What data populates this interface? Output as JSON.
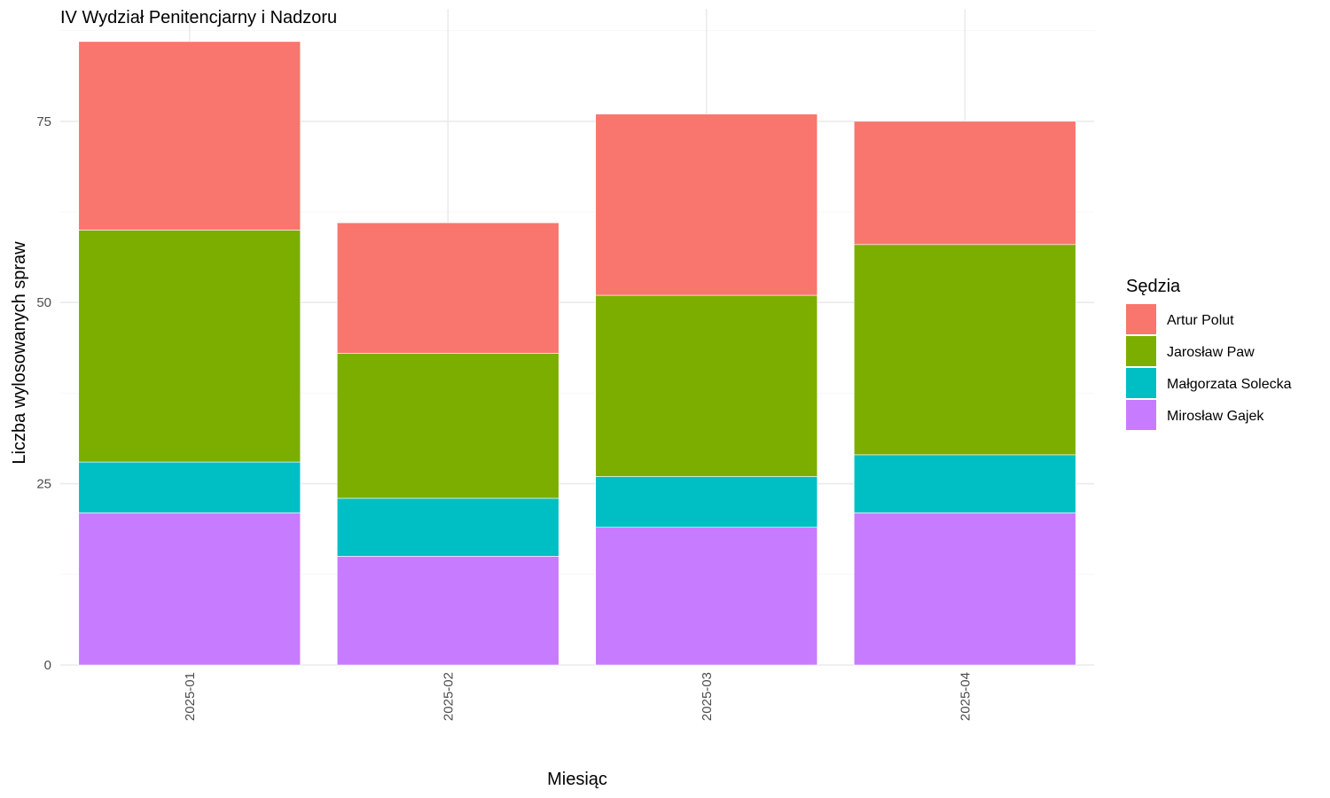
{
  "chart_data": {
    "type": "bar",
    "stacked": true,
    "title": "IV Wydział Penitencjarny i Nadzoru",
    "xlabel": "Miesiąc",
    "ylabel": "Liczba wylosowanych spraw",
    "categories": [
      "2025-01",
      "2025-02",
      "2025-03",
      "2025-04"
    ],
    "ylim": [
      0,
      88
    ],
    "yticks": [
      0,
      25,
      50,
      75
    ],
    "grid": true,
    "legend": {
      "title": "Sędzia",
      "position": "right"
    },
    "stack_order_bottom_to_top": [
      "Mirosław Gajek",
      "Małgorzata Solecka",
      "Jarosław Paw",
      "Artur Polut"
    ],
    "series": [
      {
        "name": "Artur Polut",
        "color": "#F8766D",
        "values": [
          26,
          18,
          25,
          17
        ]
      },
      {
        "name": "Jarosław Paw",
        "color": "#7CAE00",
        "values": [
          32,
          20,
          25,
          29
        ]
      },
      {
        "name": "Małgorzata Solecka",
        "color": "#00BFC4",
        "values": [
          7,
          8,
          7,
          8
        ]
      },
      {
        "name": "Mirosław Gajek",
        "color": "#C77CFF",
        "values": [
          21,
          15,
          19,
          21
        ]
      }
    ]
  }
}
